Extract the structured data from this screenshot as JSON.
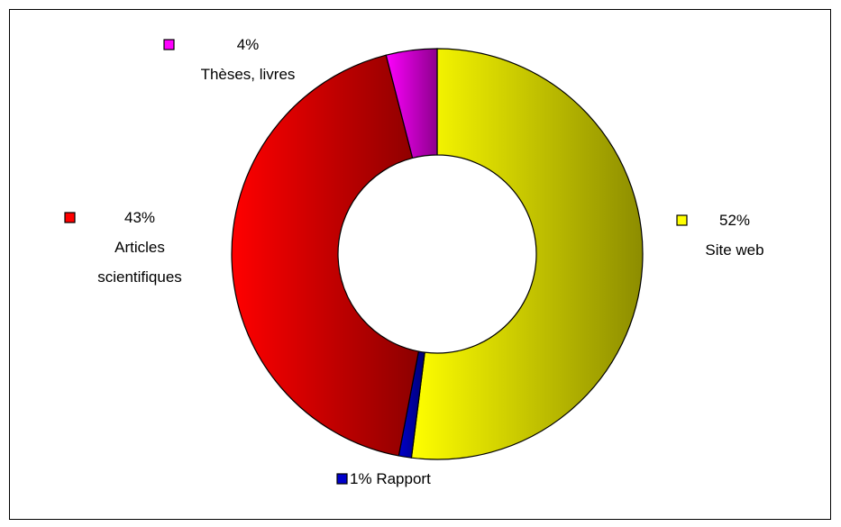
{
  "chart_data": {
    "type": "donut",
    "categories": [
      "Site web",
      "Rapport",
      "Articles scientifiques",
      "Thèses, livres"
    ],
    "values": [
      52,
      1,
      43,
      4
    ],
    "value_labels": [
      "52%",
      "1%",
      "43%",
      "4%"
    ],
    "colors": [
      "#ffff00",
      "#0000cc",
      "#ff0000",
      "#ff00ff"
    ],
    "legend": "beside-slices"
  }
}
